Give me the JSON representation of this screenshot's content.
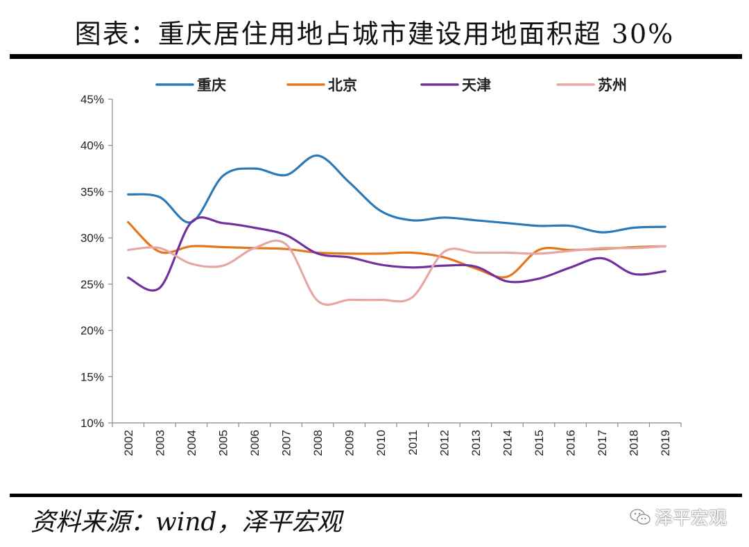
{
  "title": "图表：重庆居住用地占城市建设用地面积超 30%",
  "source": "资料来源：wind，泽平宏观",
  "watermark": "泽平宏观",
  "chart_data": {
    "type": "line",
    "title": "",
    "xlabel": "",
    "ylabel": "",
    "ylim": [
      10,
      45
    ],
    "y_ticks": [
      "10%",
      "15%",
      "20%",
      "25%",
      "30%",
      "35%",
      "40%",
      "45%"
    ],
    "y_tick_values": [
      10,
      15,
      20,
      25,
      30,
      35,
      40,
      45
    ],
    "y_unit": "%",
    "grid": false,
    "legend_position": "top",
    "categories": [
      "2002",
      "2003",
      "2004",
      "2005",
      "2006",
      "2007",
      "2008",
      "2009",
      "2010",
      "2011",
      "2012",
      "2013",
      "2014",
      "2015",
      "2016",
      "2017",
      "2018",
      "2019"
    ],
    "series": [
      {
        "name": "重庆",
        "color": "#2A7AB9",
        "values": [
          34.7,
          34.4,
          31.7,
          36.7,
          37.5,
          36.8,
          38.9,
          36.0,
          32.9,
          31.9,
          32.2,
          31.9,
          31.6,
          31.3,
          31.3,
          30.6,
          31.1,
          31.2
        ]
      },
      {
        "name": "北京",
        "color": "#E4761B",
        "values": [
          31.7,
          28.5,
          29.1,
          29.0,
          28.9,
          28.8,
          28.4,
          28.3,
          28.3,
          28.4,
          27.9,
          26.7,
          25.8,
          28.7,
          28.7,
          28.8,
          29.0,
          29.1
        ]
      },
      {
        "name": "天津",
        "color": "#7030A0",
        "values": [
          25.7,
          24.6,
          31.7,
          31.6,
          31.1,
          30.3,
          28.3,
          27.9,
          27.1,
          26.8,
          27.0,
          26.9,
          25.3,
          25.6,
          26.8,
          27.8,
          26.1,
          26.4
        ]
      },
      {
        "name": "苏州",
        "color": "#E6A6A4",
        "values": [
          28.7,
          28.9,
          27.2,
          27.0,
          28.9,
          29.3,
          23.2,
          23.3,
          23.3,
          23.6,
          28.5,
          28.4,
          28.4,
          28.3,
          28.6,
          28.9,
          28.9,
          29.1
        ]
      }
    ]
  }
}
